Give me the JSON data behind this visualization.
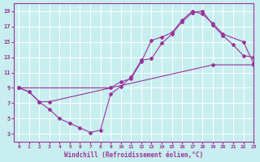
{
  "background_color": "#c8eef0",
  "grid_color": "#ffffff",
  "line_color": "#993399",
  "marker_color": "#993399",
  "xlabel": "Windchill (Refroidissement éolien,°C)",
  "xlim": [
    -0.5,
    23
  ],
  "ylim": [
    2,
    20
  ],
  "yticks": [
    3,
    5,
    7,
    9,
    11,
    13,
    15,
    17,
    19
  ],
  "xticks": [
    0,
    1,
    2,
    3,
    4,
    5,
    6,
    7,
    8,
    9,
    10,
    11,
    12,
    13,
    14,
    15,
    16,
    17,
    18,
    19,
    20,
    21,
    22,
    23
  ],
  "line1_x": [
    0,
    1,
    2,
    3,
    4,
    5,
    6,
    7,
    8,
    9,
    10,
    11,
    12,
    13,
    14,
    15,
    16,
    17,
    18,
    19,
    20,
    21,
    22,
    23
  ],
  "line1_y": [
    9.0,
    8.5,
    7.2,
    6.2,
    5.0,
    4.4,
    3.8,
    3.2,
    3.5,
    8.2,
    9.2,
    10.4,
    12.6,
    12.8,
    14.8,
    16.0,
    17.6,
    18.8,
    19.0,
    17.2,
    15.8,
    14.6,
    13.2,
    13.0
  ],
  "line2_x": [
    0,
    1,
    2,
    3,
    9,
    10,
    11,
    12,
    13,
    14,
    15,
    16,
    17,
    18,
    19,
    20,
    22,
    23
  ],
  "line2_y": [
    9.0,
    8.5,
    7.2,
    7.2,
    9.0,
    9.8,
    10.2,
    12.4,
    15.2,
    15.6,
    16.2,
    17.8,
    19.0,
    18.6,
    17.4,
    16.0,
    15.0,
    12.2
  ],
  "line3_x": [
    0,
    9,
    19,
    23
  ],
  "line3_y": [
    9.0,
    9.0,
    12.0,
    12.0
  ]
}
